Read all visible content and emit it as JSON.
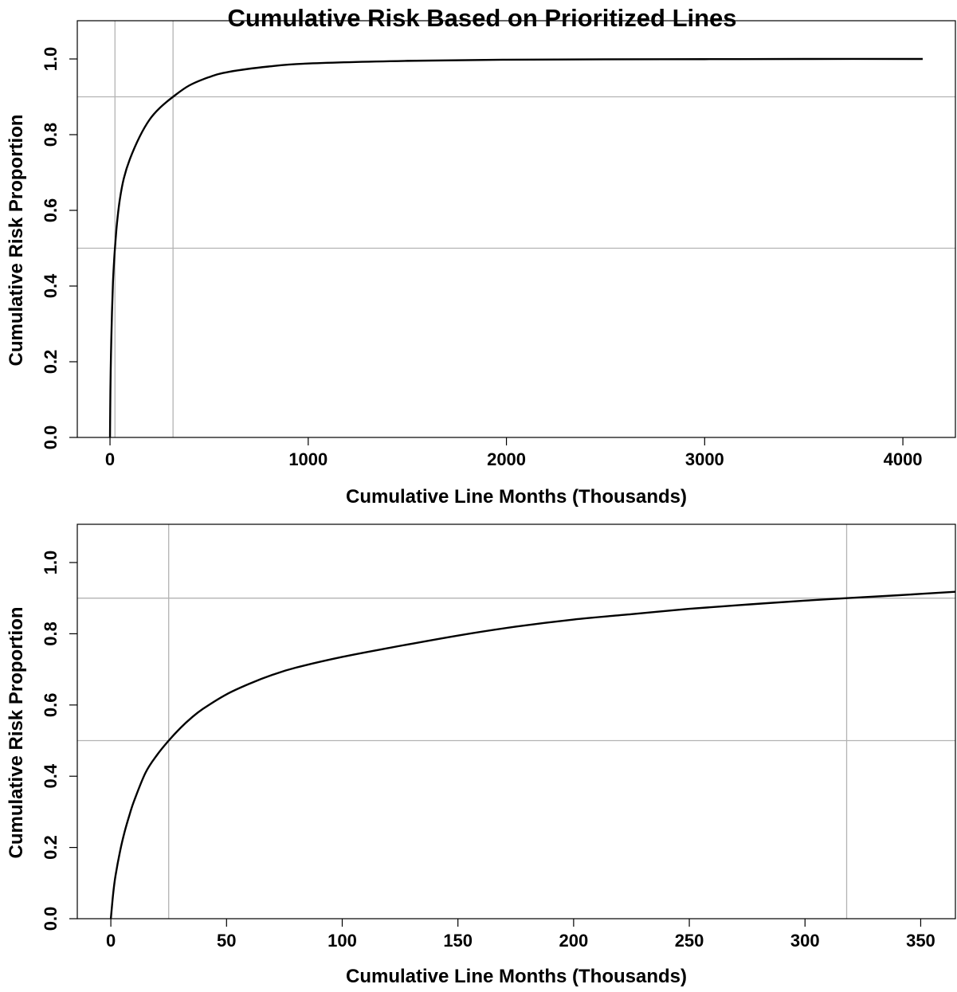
{
  "title": "Cumulative Risk Based on Prioritized Lines",
  "chart_data": [
    {
      "type": "line",
      "title": "Cumulative Risk Based on Prioritized Lines",
      "xlabel": "Cumulative Line Months (Thousands)",
      "ylabel": "Cumulative Risk Proportion",
      "xlim": [
        -165,
        4265
      ],
      "ylim": [
        0,
        1.0
      ],
      "x_ticks": [
        0,
        1000,
        2000,
        3000,
        4000
      ],
      "x_tick_labels": [
        "0",
        "1000",
        "2000",
        "3000",
        "4000"
      ],
      "y_ticks": [
        0.0,
        0.2,
        0.4,
        0.6,
        0.8,
        1.0
      ],
      "y_tick_labels": [
        "0.0",
        "0.2",
        "0.4",
        "0.6",
        "0.8",
        "1.0"
      ],
      "reference_lines": {
        "h": [
          0.5,
          0.9
        ],
        "v": [
          25,
          318
        ]
      },
      "reference_color": "#b3b3b3",
      "line_color": "#000000",
      "grid": false,
      "series": [
        {
          "x": [
            0,
            2,
            5,
            10,
            15,
            20,
            25,
            35,
            50,
            70,
            100,
            150,
            200,
            250,
            318,
            400,
            500,
            600,
            800,
            1000,
            1500,
            2000,
            2500,
            3000,
            3500,
            4100
          ],
          "y": [
            0.0,
            0.12,
            0.22,
            0.33,
            0.41,
            0.46,
            0.5,
            0.565,
            0.63,
            0.685,
            0.735,
            0.795,
            0.84,
            0.87,
            0.9,
            0.93,
            0.952,
            0.966,
            0.98,
            0.988,
            0.995,
            0.998,
            0.999,
            0.9995,
            1.0,
            1.0
          ]
        }
      ]
    },
    {
      "type": "line",
      "title": "",
      "xlabel": "Cumulative Line Months (Thousands)",
      "ylabel": "Cumulative Risk Proportion",
      "xlim": [
        -14.5,
        365
      ],
      "ylim": [
        0,
        1.0
      ],
      "x_ticks": [
        0,
        50,
        100,
        150,
        200,
        250,
        300,
        350
      ],
      "x_tick_labels": [
        "0",
        "50",
        "100",
        "150",
        "200",
        "250",
        "300",
        "350"
      ],
      "y_ticks": [
        0.0,
        0.2,
        0.4,
        0.6,
        0.8,
        1.0
      ],
      "y_tick_labels": [
        "0.0",
        "0.2",
        "0.4",
        "0.6",
        "0.8",
        "1.0"
      ],
      "reference_lines": {
        "h": [
          0.5,
          0.9
        ],
        "v": [
          25,
          318
        ]
      },
      "reference_color": "#b3b3b3",
      "line_color": "#000000",
      "grid": false,
      "series": [
        {
          "x": [
            0,
            1,
            2,
            4,
            6,
            8,
            10,
            15,
            20,
            25,
            30,
            35,
            40,
            50,
            60,
            70,
            80,
            100,
            120,
            150,
            175,
            200,
            225,
            250,
            275,
            300,
            318,
            340,
            365
          ],
          "y": [
            0.0,
            0.07,
            0.12,
            0.19,
            0.245,
            0.29,
            0.33,
            0.41,
            0.46,
            0.5,
            0.535,
            0.565,
            0.59,
            0.63,
            0.66,
            0.685,
            0.705,
            0.735,
            0.76,
            0.795,
            0.82,
            0.84,
            0.855,
            0.87,
            0.882,
            0.893,
            0.9,
            0.908,
            0.918
          ]
        }
      ]
    }
  ]
}
